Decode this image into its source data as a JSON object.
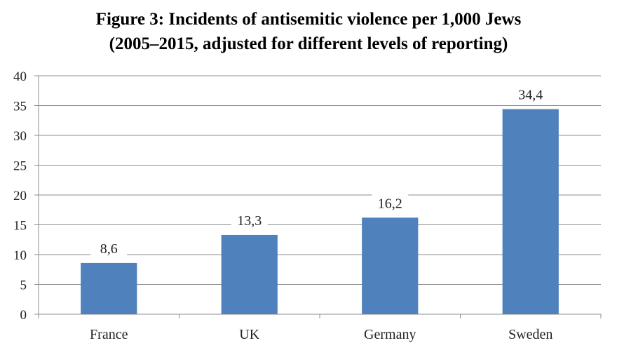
{
  "chart_data": {
    "type": "bar",
    "title_line1": "Figure 3: Incidents of antisemitic violence per 1,000 Jews",
    "title_line2": "(2005–2015, adjusted for different levels of reporting)",
    "categories": [
      "France",
      "UK",
      "Germany",
      "Sweden"
    ],
    "values": [
      8.6,
      13.3,
      16.2,
      34.4
    ],
    "value_labels": [
      "8,6",
      "13,3",
      "16,2",
      "34,4"
    ],
    "ylim": [
      0,
      40
    ],
    "yticks": [
      "0",
      "5",
      "10",
      "15",
      "20",
      "25",
      "30",
      "35",
      "40"
    ],
    "grid": true,
    "bar_color": "#4f81bd",
    "grid_color": "#8c8c8c"
  }
}
